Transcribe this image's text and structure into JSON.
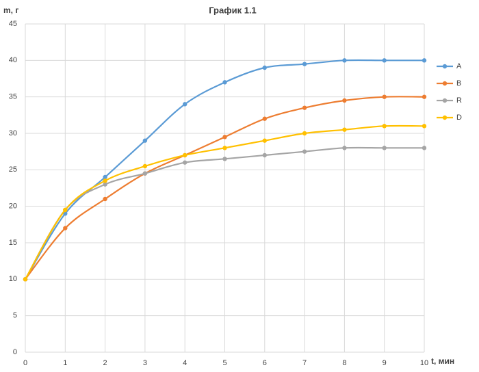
{
  "chart_data": {
    "type": "line",
    "title": "График 1.1",
    "y_label": "m, г",
    "x_label": "t, мин",
    "x": [
      0,
      1,
      2,
      3,
      4,
      5,
      6,
      7,
      8,
      9,
      10
    ],
    "series": [
      {
        "name": "A",
        "color": "#5b9bd5",
        "values": [
          10,
          19,
          24,
          29,
          34,
          37,
          39,
          39.5,
          40,
          40,
          40
        ]
      },
      {
        "name": "B",
        "color": "#ed7d31",
        "values": [
          10,
          17,
          21,
          24.5,
          27,
          29.5,
          32,
          33.5,
          34.5,
          35,
          35
        ]
      },
      {
        "name": "R",
        "color": "#a5a5a5",
        "values": [
          10,
          19.5,
          23,
          24.5,
          26,
          26.5,
          27,
          27.5,
          28,
          28,
          28
        ]
      },
      {
        "name": "D",
        "color": "#ffc000",
        "values": [
          10,
          19.5,
          23.5,
          25.5,
          27,
          28,
          29,
          30,
          30.5,
          31,
          31
        ]
      }
    ],
    "xlim": [
      0,
      10
    ],
    "xticks": [
      0,
      1,
      2,
      3,
      4,
      5,
      6,
      7,
      8,
      9,
      10
    ],
    "ylim": [
      0,
      45
    ],
    "yticks": [
      0,
      5,
      10,
      15,
      20,
      25,
      30,
      35,
      40,
      45
    ],
    "grid": true,
    "legend": "right",
    "smooth": true
  }
}
